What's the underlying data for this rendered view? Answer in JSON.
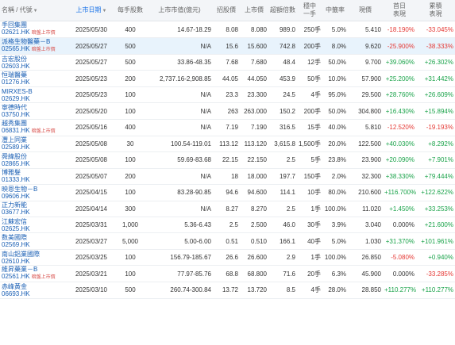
{
  "headers": {
    "name": "名稱 / 代號",
    "listing_date": "上市日期",
    "lot_size": "每手股數",
    "market_cap": "上市市值(億元)",
    "offer_price": "招股價",
    "listing_price": "上市價",
    "subscription": "超額倍數",
    "one_lot_rate_line1": "穩中",
    "one_lot_rate_line2": "一手",
    "allotment": "中籤率",
    "current": "現價",
    "first_day_line1": "首日",
    "first_day_line2": "表現",
    "cumulative_line1": "累積",
    "cumulative_line2": "表現",
    "sort_arrow": "▼"
  },
  "rows": [
    {
      "name": "手回集團",
      "code": "02621.HK",
      "tag": "暗盤上市價",
      "date": "2025/05/30",
      "lot": "400",
      "cap": "14.67-18.29",
      "offer": "8.08",
      "listing": "8.080",
      "sub": "989.0",
      "onelot": "250手",
      "rate": "5.0%",
      "price": "5.410",
      "first": "-18.190%",
      "first_dir": "down",
      "cum": "-33.045%",
      "cum_dir": "down",
      "hl": false
    },
    {
      "name": "派格生物醫藥－B",
      "code": "02565.HK",
      "tag": "暗盤上市價",
      "date": "2025/05/27",
      "lot": "500",
      "cap": "N/A",
      "offer": "15.6",
      "listing": "15.600",
      "sub": "742.8",
      "onelot": "200手",
      "rate": "8.0%",
      "price": "9.620",
      "first": "-25.900%",
      "first_dir": "down",
      "cum": "-38.333%",
      "cum_dir": "down",
      "hl": true
    },
    {
      "name": "吉宏股份",
      "code": "02603.HK",
      "tag": "",
      "date": "2025/05/27",
      "lot": "500",
      "cap": "33.86-48.35",
      "offer": "7.68",
      "listing": "7.680",
      "sub": "48.4",
      "onelot": "12手",
      "rate": "50.0%",
      "price": "9.700",
      "first": "+39.060%",
      "first_dir": "up",
      "cum": "+26.302%",
      "cum_dir": "up",
      "hl": false
    },
    {
      "name": "恒瑞醫藥",
      "code": "01276.HK",
      "tag": "",
      "date": "2025/05/23",
      "lot": "200",
      "cap": "2,737.16-2,908.85",
      "offer": "44.05",
      "listing": "44.050",
      "sub": "453.9",
      "onelot": "50手",
      "rate": "10.0%",
      "price": "57.900",
      "first": "+25.200%",
      "first_dir": "up",
      "cum": "+31.442%",
      "cum_dir": "up",
      "hl": false
    },
    {
      "name": "MIRXES-B",
      "code": "02629.HK",
      "tag": "",
      "date": "2025/05/23",
      "lot": "100",
      "cap": "N/A",
      "offer": "23.3",
      "listing": "23.300",
      "sub": "24.5",
      "onelot": "4手",
      "rate": "95.0%",
      "price": "29.500",
      "first": "+28.760%",
      "first_dir": "up",
      "cum": "+26.609%",
      "cum_dir": "up",
      "hl": false
    },
    {
      "name": "寧德時代",
      "code": "03750.HK",
      "tag": "",
      "date": "2025/05/20",
      "lot": "100",
      "cap": "N/A",
      "offer": "263",
      "listing": "263.000",
      "sub": "150.2",
      "onelot": "200手",
      "rate": "50.0%",
      "price": "304.800",
      "first": "+16.430%",
      "first_dir": "up",
      "cum": "+15.894%",
      "cum_dir": "up",
      "hl": false
    },
    {
      "name": "越秀集團",
      "code": "06831.HK",
      "tag": "暗盤上市價",
      "date": "2025/05/16",
      "lot": "400",
      "cap": "N/A",
      "offer": "7.19",
      "listing": "7.190",
      "sub": "316.5",
      "onelot": "15手",
      "rate": "40.0%",
      "price": "5.810",
      "first": "-12.520%",
      "first_dir": "down",
      "cum": "-19.193%",
      "cum_dir": "down",
      "hl": false
    },
    {
      "name": "灃上同業",
      "code": "02589.HK",
      "tag": "",
      "date": "2025/05/08",
      "lot": "30",
      "cap": "100.54-119.01",
      "offer": "113.12",
      "listing": "113.120",
      "sub": "3,615.8",
      "onelot": "1,500手",
      "rate": "20.0%",
      "price": "122.500",
      "first": "+40.030%",
      "first_dir": "up",
      "cum": "+8.292%",
      "cum_dir": "up",
      "hl": false
    },
    {
      "name": "舜緯股份",
      "code": "02865.HK",
      "tag": "",
      "date": "2025/05/08",
      "lot": "100",
      "cap": "59.69-83.68",
      "offer": "22.15",
      "listing": "22.150",
      "sub": "2.5",
      "onelot": "5手",
      "rate": "23.8%",
      "price": "23.900",
      "first": "+20.090%",
      "first_dir": "up",
      "cum": "+7.901%",
      "cum_dir": "up",
      "hl": false
    },
    {
      "name": "博雅髮",
      "code": "01333.HK",
      "tag": "",
      "date": "2025/05/07",
      "lot": "200",
      "cap": "N/A",
      "offer": "18",
      "listing": "18.000",
      "sub": "197.7",
      "onelot": "150手",
      "rate": "2.0%",
      "price": "32.300",
      "first": "+38.330%",
      "first_dir": "up",
      "cum": "+79.444%",
      "cum_dir": "up",
      "hl": false
    },
    {
      "name": "映恩生物－B",
      "code": "09606.HK",
      "tag": "",
      "date": "2025/04/15",
      "lot": "100",
      "cap": "83.28-90.85",
      "offer": "94.6",
      "listing": "94.600",
      "sub": "114.1",
      "onelot": "10手",
      "rate": "80.0%",
      "price": "210.600",
      "first": "+116.700%",
      "first_dir": "up",
      "cum": "+122.622%",
      "cum_dir": "up",
      "hl": false
    },
    {
      "name": "正力新能",
      "code": "03677.HK",
      "tag": "",
      "date": "2025/04/14",
      "lot": "300",
      "cap": "N/A",
      "offer": "8.27",
      "listing": "8.270",
      "sub": "2.5",
      "onelot": "1手",
      "rate": "100.0%",
      "price": "11.020",
      "first": "+1.450%",
      "first_dir": "up",
      "cum": "+33.253%",
      "cum_dir": "up",
      "hl": false
    },
    {
      "name": "江蘇宏信",
      "code": "02625.HK",
      "tag": "",
      "date": "2025/03/31",
      "lot": "1,000",
      "cap": "5.36-6.43",
      "offer": "2.5",
      "listing": "2.500",
      "sub": "46.0",
      "onelot": "30手",
      "rate": "3.9%",
      "price": "3.040",
      "first": "0.000%",
      "first_dir": "none",
      "cum": "+21.600%",
      "cum_dir": "up",
      "hl": false
    },
    {
      "name": "数美國際",
      "code": "02569.HK",
      "tag": "",
      "date": "2025/03/27",
      "lot": "5,000",
      "cap": "5.00-6.00",
      "offer": "0.51",
      "listing": "0.510",
      "sub": "166.1",
      "onelot": "40手",
      "rate": "5.0%",
      "price": "1.030",
      "first": "+31.370%",
      "first_dir": "up",
      "cum": "+101.961%",
      "cum_dir": "up",
      "hl": false
    },
    {
      "name": "南山鋁業國際",
      "code": "02610.HK",
      "tag": "",
      "date": "2025/03/25",
      "lot": "100",
      "cap": "156.79-185.67",
      "offer": "26.6",
      "listing": "26.600",
      "sub": "2.9",
      "onelot": "1手",
      "rate": "100.0%",
      "price": "26.850",
      "first": "-5.080%",
      "first_dir": "down",
      "cum": "+0.940%",
      "cum_dir": "up",
      "hl": false
    },
    {
      "name": "維昇藥業－B",
      "code": "02561.HK",
      "tag": "暗盤上市價",
      "date": "2025/03/21",
      "lot": "100",
      "cap": "77.97-85.76",
      "offer": "68.8",
      "listing": "68.800",
      "sub": "71.6",
      "onelot": "20手",
      "rate": "6.3%",
      "price": "45.900",
      "first": "0.000%",
      "first_dir": "none",
      "cum": "-33.285%",
      "cum_dir": "down",
      "hl": false
    },
    {
      "name": "赤峰黃金",
      "code": "06693.HK",
      "tag": "",
      "date": "2025/03/10",
      "lot": "500",
      "cap": "260.74-300.84",
      "offer": "13.72",
      "listing": "13.720",
      "sub": "8.5",
      "onelot": "4手",
      "rate": "28.0%",
      "price": "28.850",
      "first": "+110.277%",
      "first_dir": "up",
      "cum": "+110.277%",
      "cum_dir": "up",
      "hl": false
    }
  ]
}
